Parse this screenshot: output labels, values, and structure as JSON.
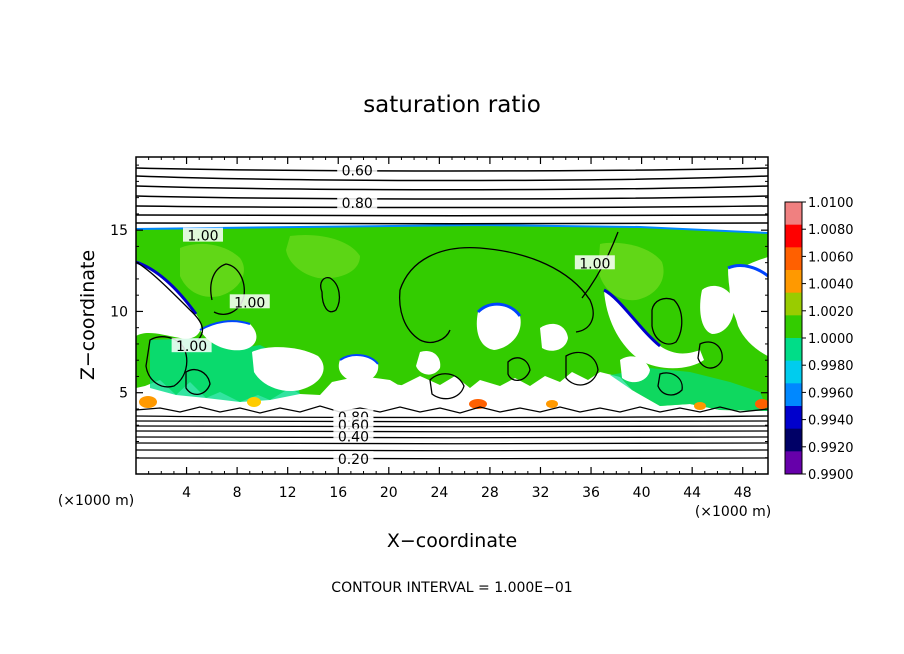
{
  "chart_data": {
    "type": "heatmap",
    "title": "saturation ratio",
    "xlabel": "X−coordinate",
    "ylabel": "Z−coordinate",
    "x_unit_left": "(×1000 m)",
    "x_unit_right": "(×1000 m)",
    "xlim": [
      0,
      50
    ],
    "ylim": [
      0,
      19.5
    ],
    "x_ticks": [
      4,
      8,
      12,
      16,
      20,
      24,
      28,
      32,
      36,
      40,
      44,
      48
    ],
    "y_ticks": [
      5,
      10,
      15
    ],
    "grid": false,
    "legend_position": "right",
    "colorbar": {
      "levels": [
        "1.0100",
        "1.0080",
        "1.0060",
        "1.0040",
        "1.0020",
        "1.0000",
        "0.9980",
        "0.9960",
        "0.9940",
        "0.9920",
        "0.9900"
      ],
      "colors": [
        "#f08080",
        "#ff0000",
        "#ff6000",
        "#ff9900",
        "#99cc00",
        "#33cc00",
        "#00dd88",
        "#00ccee",
        "#0088ff",
        "#0000cc",
        "#000066",
        "#6600aa"
      ]
    },
    "contour_labels": [
      {
        "text": "0.60",
        "x": 17.5,
        "y": 18.6
      },
      {
        "text": "0.80",
        "x": 17.5,
        "y": 16.6
      },
      {
        "text": "1.00",
        "x": 5.3,
        "y": 14.6
      },
      {
        "text": "1.00",
        "x": 36.3,
        "y": 12.9
      },
      {
        "text": "1.00",
        "x": 9.0,
        "y": 10.5
      },
      {
        "text": "1.00",
        "x": 4.4,
        "y": 7.8
      },
      {
        "text": "0.80",
        "x": 17.2,
        "y": 3.45
      },
      {
        "text": "0.60",
        "x": 17.2,
        "y": 2.95
      },
      {
        "text": "0.40",
        "x": 17.2,
        "y": 2.25
      },
      {
        "text": "0.20",
        "x": 17.2,
        "y": 0.85
      }
    ],
    "footer": "CONTOUR INTERVAL = 1.000E−01"
  }
}
